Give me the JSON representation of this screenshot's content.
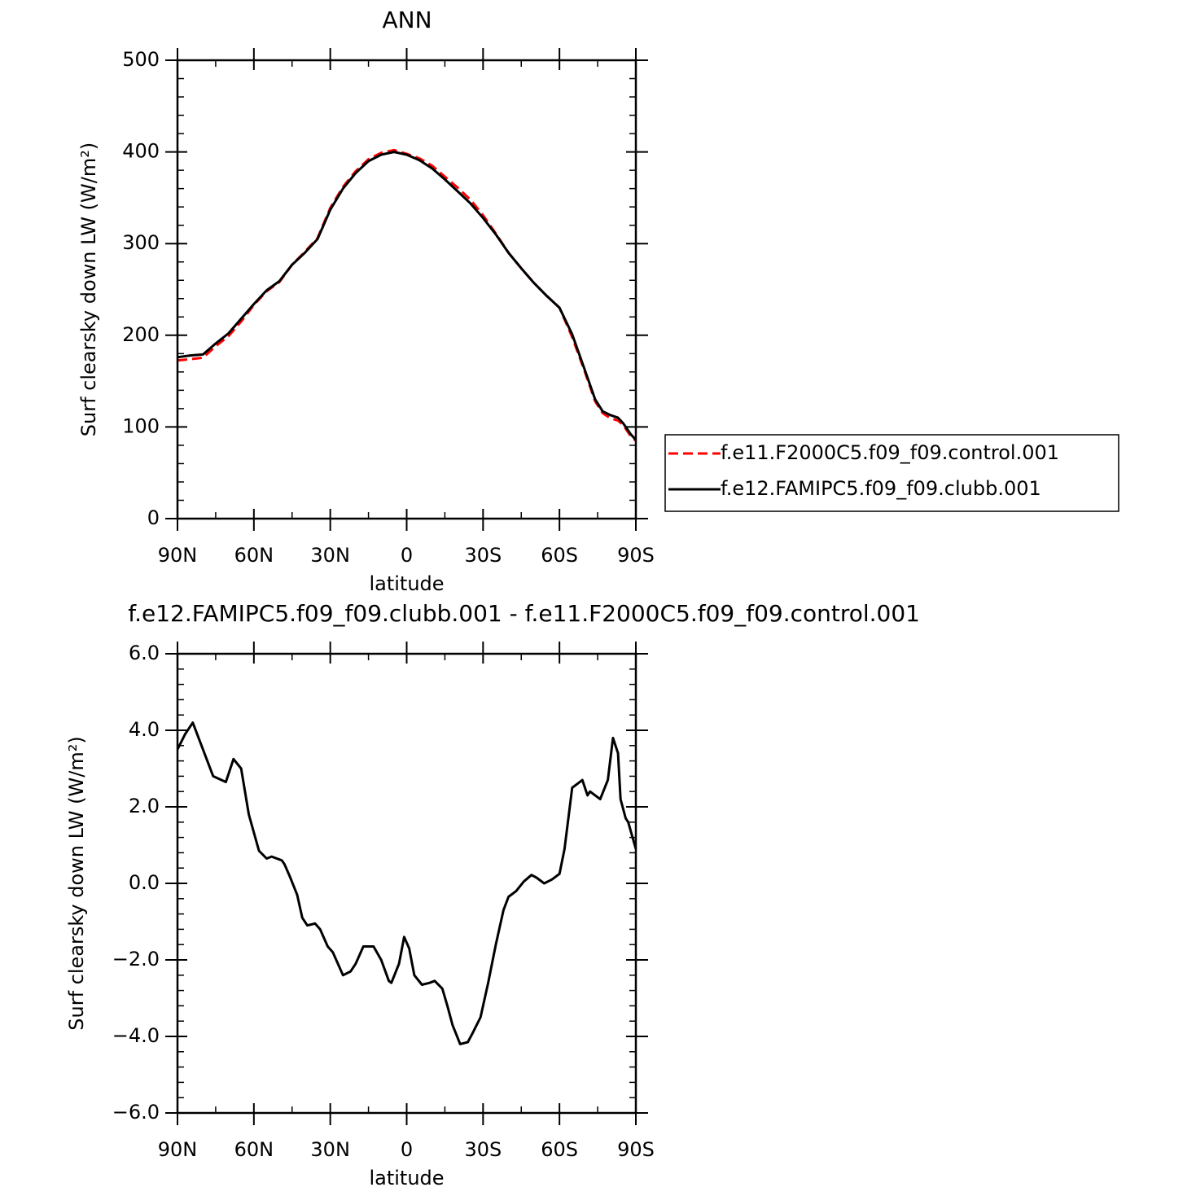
{
  "chart_data": [
    {
      "type": "line",
      "title": "ANN",
      "x_label": "latitude",
      "y_label": "Surf clearsky down LW (W/m²)",
      "xlim": [
        90,
        -90
      ],
      "xticks": [
        {
          "value": 90,
          "label": "90N"
        },
        {
          "value": 60,
          "label": "60N"
        },
        {
          "value": 30,
          "label": "30N"
        },
        0,
        {
          "value": -30,
          "label": "30S"
        },
        {
          "value": -60,
          "label": "60S"
        },
        {
          "value": -90,
          "label": "90S"
        }
      ],
      "ylim": [
        0,
        500
      ],
      "yticks": [
        0,
        100,
        200,
        300,
        400,
        500
      ],
      "legend": "right",
      "x": [
        90,
        85,
        80,
        75,
        70,
        65,
        60,
        55,
        50,
        45,
        40,
        35,
        30,
        25,
        20,
        15,
        10,
        5,
        0,
        -5,
        -10,
        -15,
        -20,
        -25,
        -30,
        -35,
        -40,
        -45,
        -50,
        -55,
        -60,
        -65,
        -70,
        -74,
        -77,
        -80,
        -83,
        -85,
        -88,
        -90
      ],
      "series": [
        {
          "name": "f.e11.F2000C5.f09_f09.control.001",
          "color": "#ff0000",
          "style": "dashed",
          "values": [
            172.5,
            174,
            175.5,
            188,
            199,
            215,
            233,
            248,
            258,
            277,
            291,
            306,
            339,
            362,
            379,
            392,
            399,
            402,
            398,
            393,
            385,
            373,
            361,
            348,
            331,
            311,
            290,
            273,
            257,
            243,
            230,
            198,
            160,
            128,
            115,
            109.5,
            107,
            102,
            90,
            85
          ]
        },
        {
          "name": "f.e12.FAMIPC5.f09_f09.clubb.001",
          "color": "#000000",
          "style": "solid",
          "values": [
            176,
            178,
            179,
            191,
            202,
            218,
            234,
            249,
            259,
            277,
            290,
            305,
            337,
            360,
            377,
            390,
            397,
            400,
            397,
            391,
            382,
            370,
            357,
            344,
            328,
            310,
            290,
            273,
            257,
            243,
            230,
            201,
            162,
            130,
            117,
            113,
            110,
            104,
            92,
            86
          ]
        }
      ]
    },
    {
      "type": "line",
      "title": "f.e12.FAMIPC5.f09_f09.clubb.001 - f.e11.F2000C5.f09_f09.control.001",
      "x_label": "latitude",
      "y_label": "Surf clearsky down LW (W/m²)",
      "xlim": [
        90,
        -90
      ],
      "xticks": [
        {
          "value": 90,
          "label": "90N"
        },
        {
          "value": 60,
          "label": "60N"
        },
        {
          "value": 30,
          "label": "30N"
        },
        0,
        {
          "value": -30,
          "label": "30S"
        },
        {
          "value": -60,
          "label": "60S"
        },
        {
          "value": -90,
          "label": "90S"
        }
      ],
      "ylim": [
        -6,
        6
      ],
      "yticks": [
        {
          "value": -6,
          "label": "−6.0"
        },
        {
          "value": -4,
          "label": "−4.0"
        },
        {
          "value": -2,
          "label": "−2.0"
        },
        {
          "value": 0,
          "label": "0.0"
        },
        {
          "value": 2,
          "label": "2.0"
        },
        {
          "value": 4,
          "label": "4.0"
        },
        {
          "value": 6,
          "label": "6.0"
        }
      ],
      "x": [
        90,
        87,
        84,
        80,
        76,
        71,
        68,
        65,
        62,
        58,
        55,
        53,
        49,
        48,
        46,
        43,
        41,
        39,
        36,
        34,
        31,
        29,
        25,
        22,
        20,
        17,
        13,
        10,
        7,
        6,
        3,
        1,
        -1,
        -3,
        -6,
        -9,
        -11,
        -14,
        -16,
        -18,
        -21,
        -24,
        -26,
        -29,
        -32,
        -35,
        -38,
        -40,
        -43,
        -46,
        -49,
        -51,
        -54,
        -57,
        -60,
        -62,
        -65,
        -67,
        -69,
        -71,
        -72,
        -76,
        -79,
        -81,
        -83,
        -84,
        -86,
        -87,
        -90
      ],
      "series": [
        {
          "color": "#000000",
          "style": "solid",
          "values": [
            3.5,
            3.9,
            4.2,
            3.5,
            2.8,
            2.65,
            3.25,
            3.0,
            1.8,
            0.85,
            0.65,
            0.7,
            0.6,
            0.5,
            0.2,
            -0.3,
            -0.9,
            -1.1,
            -1.05,
            -1.2,
            -1.65,
            -1.8,
            -2.4,
            -2.3,
            -2.1,
            -1.65,
            -1.65,
            -2.0,
            -2.55,
            -2.6,
            -2.1,
            -1.4,
            -1.7,
            -2.4,
            -2.65,
            -2.6,
            -2.55,
            -2.75,
            -3.2,
            -3.7,
            -4.2,
            -4.15,
            -3.9,
            -3.5,
            -2.6,
            -1.6,
            -0.7,
            -0.35,
            -0.2,
            0.05,
            0.22,
            0.15,
            0.0,
            0.1,
            0.25,
            0.9,
            2.5,
            2.6,
            2.7,
            2.3,
            2.4,
            2.2,
            2.7,
            3.8,
            3.4,
            2.2,
            1.7,
            1.6,
            0.9
          ]
        }
      ]
    }
  ]
}
